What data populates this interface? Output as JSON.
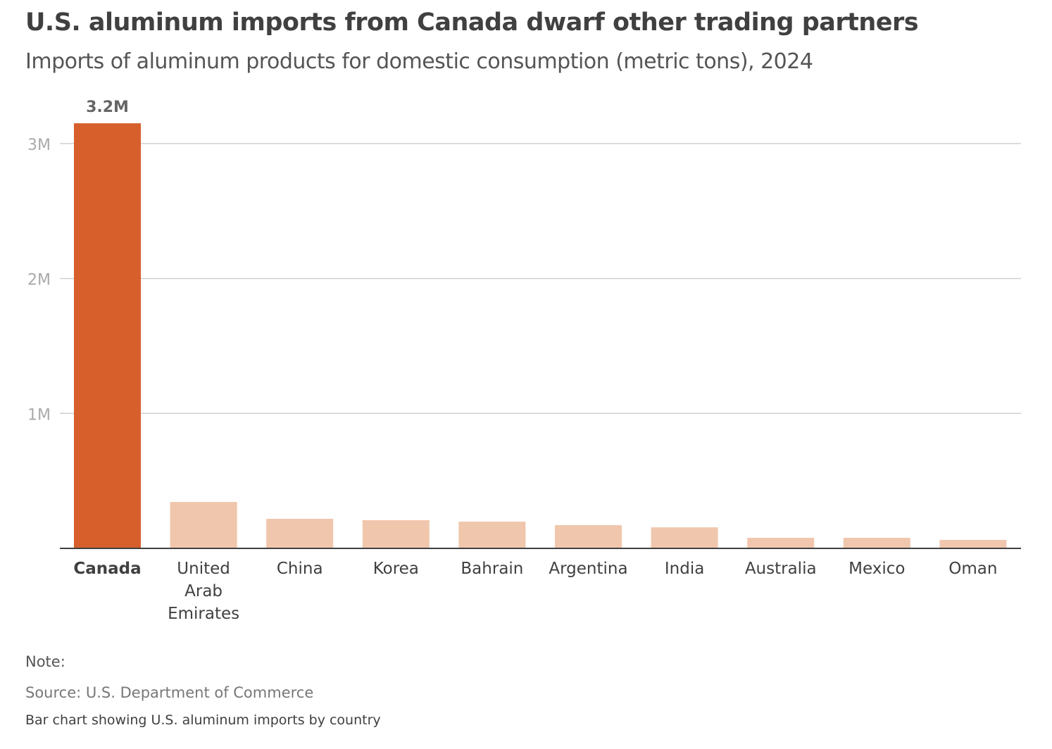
{
  "chart_data": {
    "type": "bar",
    "title": "U.S. aluminum imports from Canada dwarf other trading partners",
    "subtitle": "Imports of aluminum products for domestic consumption (metric tons), 2024",
    "categories": [
      "Canada",
      "United Arab Emirates",
      "China",
      "Korea",
      "Bahrain",
      "Argentina",
      "India",
      "Australia",
      "Mexico",
      "Oman"
    ],
    "category_lines": [
      [
        "Canada"
      ],
      [
        "United",
        "Arab",
        "Emirates"
      ],
      [
        "China"
      ],
      [
        "Korea"
      ],
      [
        "Bahrain"
      ],
      [
        "Argentina"
      ],
      [
        "India"
      ],
      [
        "Australia"
      ],
      [
        "Mexico"
      ],
      [
        "Oman"
      ]
    ],
    "values": [
      3150000,
      344000,
      219000,
      209000,
      198000,
      172000,
      156000,
      78000,
      78000,
      63000
    ],
    "highlight_index": 0,
    "data_labels": [
      {
        "index": 0,
        "text": "3.2M"
      }
    ],
    "yticks": [
      {
        "value": 1000000,
        "label": "1M"
      },
      {
        "value": 2000000,
        "label": "2M"
      },
      {
        "value": 3000000,
        "label": "3M"
      }
    ],
    "ylim": [
      0,
      3000000
    ],
    "xlabel": "",
    "ylabel": "",
    "grid": true,
    "colors": {
      "highlight": "#d65f2b",
      "other": "#f0c6ac",
      "grid": "#d0d0d0",
      "axis": "#404040"
    }
  },
  "footer": {
    "note": "Note:",
    "source": "Source: U.S. Department of Commerce",
    "description": "Bar chart showing U.S. aluminum imports by country"
  }
}
